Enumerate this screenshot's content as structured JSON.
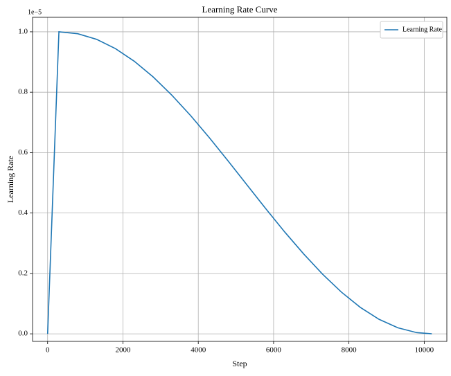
{
  "chart_data": {
    "type": "line",
    "title": "Learning Rate Curve",
    "xlabel": "Step",
    "ylabel": "Learning Rate",
    "axis_offset_label": "1e−5",
    "x": [
      0,
      300,
      800,
      1300,
      1800,
      2300,
      2800,
      3300,
      3800,
      4300,
      4800,
      5300,
      5800,
      6300,
      6800,
      7300,
      7800,
      8300,
      8800,
      9300,
      9800,
      10200
    ],
    "series": [
      {
        "name": "Learning Rate",
        "color": "#1f77b4",
        "values": [
          0,
          1.0,
          0.9937,
          0.9751,
          0.9444,
          0.9026,
          0.8508,
          0.79,
          0.7221,
          0.6485,
          0.5712,
          0.492,
          0.4132,
          0.3365,
          0.2643,
          0.1976,
          0.1382,
          0.0878,
          0.048,
          0.0199,
          0.004,
          0
        ]
      }
    ],
    "xlim": [
      -400,
      10600
    ],
    "xticks": [
      0,
      2000,
      4000,
      6000,
      8000,
      10000
    ],
    "ylim": [
      -0.025,
      1.048
    ],
    "yticks": [
      {
        "value": 0,
        "label": "0.0"
      },
      0.2,
      0.4,
      0.6,
      0.8,
      {
        "value": 1,
        "label": "1.0"
      }
    ],
    "grid": true,
    "legend": "upper right"
  }
}
